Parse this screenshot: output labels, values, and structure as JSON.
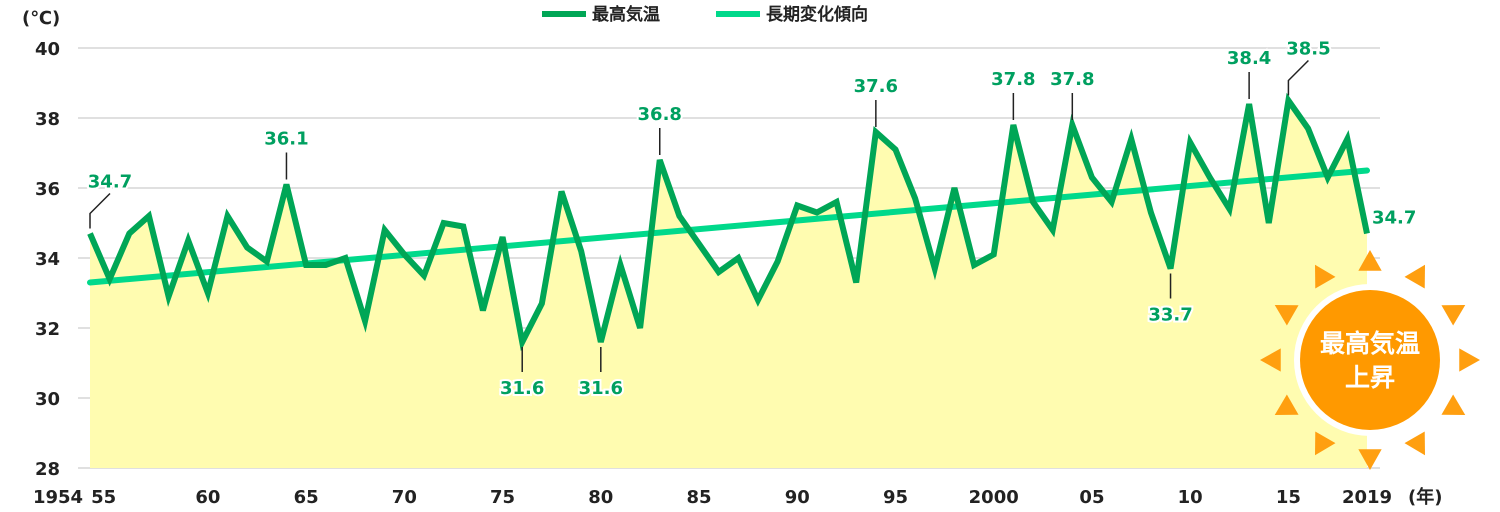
{
  "chart_data": {
    "type": "line",
    "title": "",
    "ylabel": "(℃)",
    "xlabel": "(年)",
    "ylim": [
      28,
      40
    ],
    "yticks": [
      28,
      30,
      32,
      34,
      36,
      38,
      40
    ],
    "xlim": [
      1954,
      2019
    ],
    "xtick_years": [
      1954,
      1955,
      1960,
      1965,
      1970,
      1975,
      1980,
      1985,
      1990,
      1995,
      2000,
      2005,
      2010,
      2015,
      2019
    ],
    "xtick_labels": [
      "1954",
      "55",
      "60",
      "65",
      "70",
      "75",
      "80",
      "85",
      "90",
      "95",
      "2000",
      "05",
      "10",
      "15",
      "2019"
    ],
    "grid": true,
    "legend_position": "top-center",
    "legend": [
      "最高気温",
      "長期変化傾向"
    ],
    "colors": {
      "series": "#00a656",
      "trend": "#00d98b",
      "fill": "#fffcb0",
      "label": "#00a060",
      "sun": "#ff9900",
      "sun_rays": "#ff9f10"
    },
    "x": [
      1954,
      1955,
      1956,
      1957,
      1958,
      1959,
      1960,
      1961,
      1962,
      1963,
      1964,
      1965,
      1966,
      1967,
      1968,
      1969,
      1970,
      1971,
      1972,
      1973,
      1974,
      1975,
      1976,
      1977,
      1978,
      1979,
      1980,
      1981,
      1982,
      1983,
      1984,
      1985,
      1986,
      1987,
      1988,
      1989,
      1990,
      1991,
      1992,
      1993,
      1994,
      1995,
      1996,
      1997,
      1998,
      1999,
      2000,
      2001,
      2002,
      2003,
      2004,
      2005,
      2006,
      2007,
      2008,
      2009,
      2010,
      2011,
      2012,
      2013,
      2014,
      2015,
      2016,
      2017,
      2018,
      2019
    ],
    "series": [
      {
        "name": "最高気温",
        "values": [
          34.7,
          33.4,
          34.7,
          35.2,
          32.9,
          34.5,
          33.0,
          35.2,
          34.3,
          33.9,
          36.1,
          33.8,
          33.8,
          34.0,
          32.2,
          34.8,
          34.1,
          33.5,
          35.0,
          34.9,
          32.5,
          34.6,
          31.6,
          32.7,
          35.9,
          34.2,
          31.6,
          33.8,
          32.0,
          36.8,
          35.2,
          34.4,
          33.6,
          34.0,
          32.8,
          33.9,
          35.5,
          35.3,
          35.6,
          33.3,
          37.6,
          37.1,
          35.7,
          33.7,
          36.0,
          33.8,
          34.1,
          37.8,
          35.6,
          34.8,
          37.8,
          36.3,
          35.6,
          37.4,
          35.3,
          33.7,
          37.3,
          36.3,
          35.4,
          38.4,
          35.0,
          38.5,
          37.7,
          36.3,
          37.4,
          34.7
        ]
      },
      {
        "name": "長期変化傾向",
        "trend_start": 33.3,
        "trend_end": 36.5
      }
    ],
    "annotations": [
      {
        "year": 1954,
        "text": "34.7",
        "pos": "above-diag"
      },
      {
        "year": 1964,
        "text": "36.1",
        "pos": "above"
      },
      {
        "year": 1976,
        "text": "31.6",
        "pos": "below"
      },
      {
        "year": 1980,
        "text": "31.6",
        "pos": "below"
      },
      {
        "year": 1983,
        "text": "36.8",
        "pos": "above"
      },
      {
        "year": 1994,
        "text": "37.6",
        "pos": "above"
      },
      {
        "year": 2001,
        "text": "37.8",
        "pos": "above"
      },
      {
        "year": 2004,
        "text": "37.8",
        "pos": "above"
      },
      {
        "year": 2009,
        "text": "33.7",
        "pos": "below"
      },
      {
        "year": 2013,
        "text": "38.4",
        "pos": "above"
      },
      {
        "year": 2015,
        "text": "38.5",
        "pos": "above-diag"
      },
      {
        "year": 2019,
        "text": "34.7",
        "pos": "right"
      }
    ],
    "badge": {
      "line1": "最高気温",
      "line2": "上昇"
    }
  }
}
